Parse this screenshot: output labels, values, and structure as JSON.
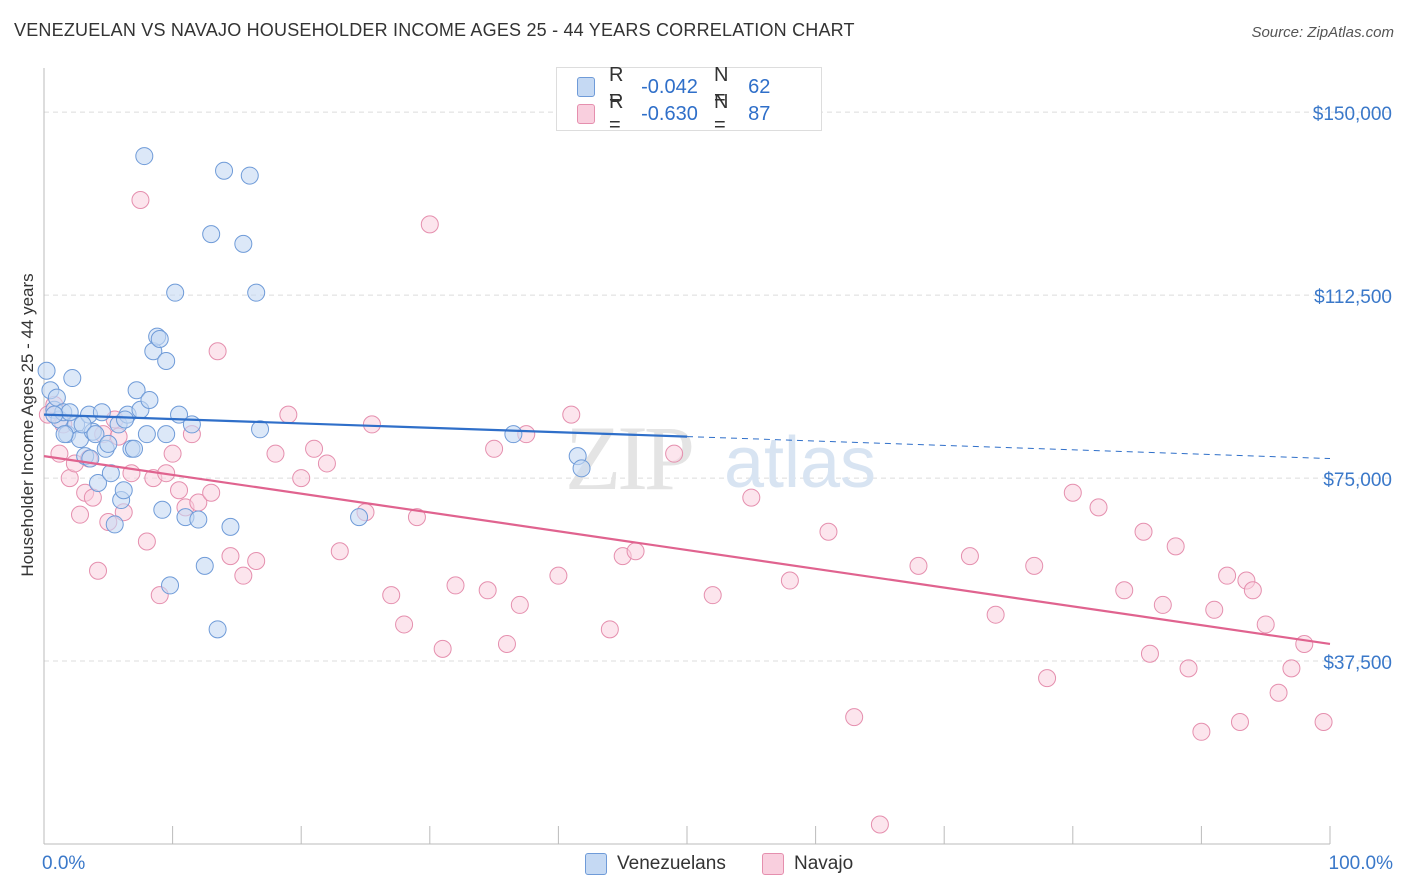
{
  "title": "VENEZUELAN VS NAVAJO HOUSEHOLDER INCOME AGES 25 - 44 YEARS CORRELATION CHART",
  "source": "Source: ZipAtlas.com",
  "watermark": {
    "zip": "ZIP",
    "atlas": "atlas"
  },
  "colors": {
    "blue": "#6f9bd8",
    "blue_fill": "#c5d9f3",
    "blue_line": "#2f6fc9",
    "pink": "#e58fae",
    "pink_fill": "#f9cfde",
    "pink_line": "#e0638f",
    "axis_text": "#3a78c9"
  },
  "legend": {
    "rows": [
      {
        "r_label": "R =",
        "r_value": "-0.042",
        "n_label": "N =",
        "n_value": "62"
      },
      {
        "r_label": "R =",
        "r_value": "-0.630",
        "n_label": "N =",
        "n_value": "87"
      }
    ]
  },
  "bottom_legend": [
    "Venezuelans",
    "Navajo"
  ],
  "chart_data": {
    "type": "scatter",
    "title": "VENEZUELAN VS NAVAJO HOUSEHOLDER INCOME AGES 25 - 44 YEARS CORRELATION CHART",
    "xlabel": "",
    "ylabel": "Householder Income Ages 25 - 44 years",
    "xlim": [
      0,
      100
    ],
    "ylim": [
      0,
      157000
    ],
    "x_tick_labels": [
      "0.0%",
      "100.0%"
    ],
    "y_ticks": [
      37500,
      75000,
      112500,
      150000
    ],
    "y_tick_labels": [
      "$37,500",
      "$75,000",
      "$112,500",
      "$150,000"
    ],
    "series": [
      {
        "name": "Venezuelans",
        "r": -0.042,
        "n": 62,
        "trend": {
          "x": [
            0,
            50
          ],
          "y": [
            88000,
            83500
          ],
          "dashed_to": [
            100,
            79000
          ]
        },
        "points": [
          [
            0.2,
            97000
          ],
          [
            0.5,
            93000
          ],
          [
            0.8,
            89000
          ],
          [
            1.0,
            91500
          ],
          [
            1.2,
            87000
          ],
          [
            1.5,
            88500
          ],
          [
            1.8,
            84000
          ],
          [
            2.2,
            95500
          ],
          [
            2.5,
            86000
          ],
          [
            2.8,
            83000
          ],
          [
            3.2,
            79500
          ],
          [
            3.5,
            88000
          ],
          [
            3.8,
            84500
          ],
          [
            4.2,
            74000
          ],
          [
            4.5,
            88500
          ],
          [
            4.8,
            81000
          ],
          [
            5.2,
            76000
          ],
          [
            5.5,
            65500
          ],
          [
            5.8,
            86000
          ],
          [
            6.0,
            70500
          ],
          [
            6.2,
            72500
          ],
          [
            6.5,
            88000
          ],
          [
            6.8,
            81000
          ],
          [
            7.2,
            93000
          ],
          [
            7.5,
            89000
          ],
          [
            7.8,
            141000
          ],
          [
            8.0,
            84000
          ],
          [
            8.2,
            91000
          ],
          [
            8.5,
            101000
          ],
          [
            8.8,
            104000
          ],
          [
            9.0,
            103500
          ],
          [
            9.2,
            68500
          ],
          [
            9.5,
            84000
          ],
          [
            9.8,
            53000
          ],
          [
            10.2,
            113000
          ],
          [
            10.5,
            88000
          ],
          [
            11.0,
            67000
          ],
          [
            11.5,
            86000
          ],
          [
            12.0,
            66500
          ],
          [
            12.5,
            57000
          ],
          [
            13.0,
            125000
          ],
          [
            13.5,
            44000
          ],
          [
            14.0,
            138000
          ],
          [
            14.5,
            65000
          ],
          [
            15.5,
            123000
          ],
          [
            16.0,
            137000
          ],
          [
            16.5,
            113000
          ],
          [
            16.8,
            85000
          ],
          [
            24.5,
            67000
          ],
          [
            36.5,
            84000
          ],
          [
            41.5,
            79500
          ],
          [
            41.8,
            77000
          ],
          [
            1.6,
            84000
          ],
          [
            2.0,
            88500
          ],
          [
            3.0,
            86000
          ],
          [
            4.0,
            84000
          ],
          [
            5.0,
            82000
          ],
          [
            6.3,
            87000
          ],
          [
            7.0,
            81000
          ],
          [
            9.5,
            99000
          ],
          [
            0.8,
            88000
          ],
          [
            3.6,
            79000
          ]
        ]
      },
      {
        "name": "Navajo",
        "r": -0.63,
        "n": 87,
        "trend": {
          "x": [
            0,
            100
          ],
          "y": [
            79500,
            41000
          ]
        },
        "points": [
          [
            0.3,
            88000
          ],
          [
            0.8,
            90000
          ],
          [
            1.2,
            80000
          ],
          [
            1.5,
            86000
          ],
          [
            2.0,
            75000
          ],
          [
            2.4,
            78000
          ],
          [
            2.8,
            67500
          ],
          [
            3.2,
            72000
          ],
          [
            3.5,
            79000
          ],
          [
            3.8,
            71000
          ],
          [
            4.2,
            56000
          ],
          [
            4.6,
            84000
          ],
          [
            5.0,
            66000
          ],
          [
            5.5,
            87000
          ],
          [
            5.8,
            83500
          ],
          [
            6.2,
            68000
          ],
          [
            6.8,
            76000
          ],
          [
            7.5,
            132000
          ],
          [
            8.0,
            62000
          ],
          [
            8.5,
            75000
          ],
          [
            9.0,
            51000
          ],
          [
            9.5,
            76000
          ],
          [
            10.0,
            80000
          ],
          [
            10.5,
            72500
          ],
          [
            11.0,
            69000
          ],
          [
            11.5,
            84000
          ],
          [
            12.0,
            70000
          ],
          [
            13.0,
            72000
          ],
          [
            13.5,
            101000
          ],
          [
            14.5,
            59000
          ],
          [
            15.5,
            55000
          ],
          [
            16.5,
            58000
          ],
          [
            18.0,
            80000
          ],
          [
            19.0,
            88000
          ],
          [
            20.0,
            75000
          ],
          [
            21.0,
            81000
          ],
          [
            22.0,
            78000
          ],
          [
            23.0,
            60000
          ],
          [
            25.0,
            68000
          ],
          [
            25.5,
            86000
          ],
          [
            27.0,
            51000
          ],
          [
            28.0,
            45000
          ],
          [
            29.0,
            67000
          ],
          [
            30.0,
            127000
          ],
          [
            31.0,
            40000
          ],
          [
            32.0,
            53000
          ],
          [
            34.5,
            52000
          ],
          [
            35.0,
            81000
          ],
          [
            36.0,
            41000
          ],
          [
            37.0,
            49000
          ],
          [
            37.5,
            84000
          ],
          [
            40.0,
            55000
          ],
          [
            41.0,
            88000
          ],
          [
            44.0,
            44000
          ],
          [
            45.0,
            59000
          ],
          [
            46.0,
            60000
          ],
          [
            49.0,
            80000
          ],
          [
            52.0,
            51000
          ],
          [
            55.0,
            71000
          ],
          [
            58.0,
            54000
          ],
          [
            61.0,
            64000
          ],
          [
            63.0,
            26000
          ],
          [
            65.0,
            4000
          ],
          [
            68.0,
            57000
          ],
          [
            72.0,
            59000
          ],
          [
            74.0,
            47000
          ],
          [
            77.0,
            57000
          ],
          [
            78.0,
            34000
          ],
          [
            80.0,
            72000
          ],
          [
            82.0,
            69000
          ],
          [
            84.0,
            52000
          ],
          [
            85.5,
            64000
          ],
          [
            86.0,
            39000
          ],
          [
            87.0,
            49000
          ],
          [
            88.0,
            61000
          ],
          [
            89.0,
            36000
          ],
          [
            90.0,
            23000
          ],
          [
            91.0,
            48000
          ],
          [
            92.0,
            55000
          ],
          [
            93.0,
            25000
          ],
          [
            93.5,
            54000
          ],
          [
            94.0,
            52000
          ],
          [
            95.0,
            45000
          ],
          [
            96.0,
            31000
          ],
          [
            97.0,
            36000
          ],
          [
            98.0,
            41000
          ],
          [
            99.5,
            25000
          ]
        ]
      }
    ]
  }
}
